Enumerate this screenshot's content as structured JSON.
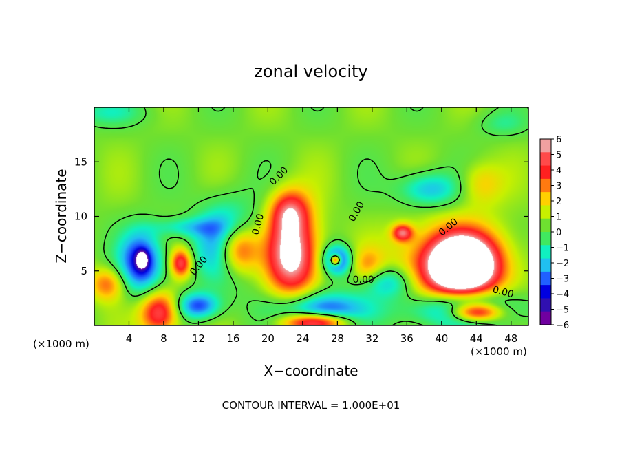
{
  "chart_data": {
    "type": "heatmap",
    "title": "zonal velocity",
    "xlabel": "X−coordinate",
    "ylabel": "Z−coordinate",
    "x_units_left": "(×1000 m)",
    "x_units_right": "(×1000 m)",
    "xlim": [
      0,
      50
    ],
    "ylim": [
      0,
      20
    ],
    "x_ticks": [
      4,
      8,
      12,
      16,
      20,
      24,
      28,
      32,
      36,
      40,
      44,
      48
    ],
    "x_tick_labels": [
      "4",
      "8",
      "12",
      "16",
      "20",
      "24",
      "28",
      "32",
      "36",
      "40",
      "44",
      "48"
    ],
    "y_ticks": [
      5,
      10,
      15
    ],
    "y_tick_labels": [
      "5",
      "10",
      "15"
    ],
    "colorbar": {
      "min": -6,
      "max": 6,
      "ticks": [
        6,
        5,
        4,
        3,
        2,
        1,
        0,
        -1,
        -2,
        -3,
        -4,
        -5,
        -6
      ],
      "tick_labels": [
        "6",
        "5",
        "4",
        "3",
        "2",
        "1",
        "0",
        "−1",
        "−2",
        "−3",
        "−4",
        "−5",
        "−6"
      ],
      "colors_top_to_bottom": [
        "#f0a0a0",
        "#ff4a4a",
        "#ff2020",
        "#ff7a10",
        "#ffd000",
        "#c8f000",
        "#6ee030",
        "#40e860",
        "#10f0c0",
        "#20c0f0",
        "#2060ff",
        "#0000e0",
        "#3010b0",
        "#7000a0"
      ]
    },
    "contour_level_label": "0.00",
    "contour_labels": [
      {
        "text": "0.00",
        "x": 21.5,
        "z": 13.5,
        "angle": -45
      },
      {
        "text": "0.00",
        "x": 19.2,
        "z": 9.2,
        "angle": -75
      },
      {
        "text": "0.00",
        "x": 12.3,
        "z": 5.3,
        "angle": -50
      },
      {
        "text": "0.00",
        "x": 30.5,
        "z": 10.3,
        "angle": -60
      },
      {
        "text": "0.00",
        "x": 31.0,
        "z": 3.9,
        "angle": 0
      },
      {
        "text": "0.00",
        "x": 41.0,
        "z": 8.8,
        "angle": -40
      },
      {
        "text": "0.00",
        "x": 47.0,
        "z": 2.8,
        "angle": 15
      }
    ],
    "field_features": [
      {
        "kind": "background",
        "value": 0.5
      },
      {
        "kind": "blob",
        "x": 22.8,
        "z": 6.5,
        "rx": 3.0,
        "ry": 4.0,
        "value": 6.5
      },
      {
        "kind": "blob",
        "x": 22.5,
        "z": 10.5,
        "rx": 2.2,
        "ry": 2.0,
        "value": 3.5
      },
      {
        "kind": "blob",
        "x": 16.5,
        "z": 7.0,
        "rx": 2.4,
        "ry": 2.4,
        "value": 6.8
      },
      {
        "kind": "blob",
        "x": 15.5,
        "z": 7.5,
        "rx": 3.5,
        "ry": 3.5,
        "value": -5.0
      },
      {
        "kind": "blob",
        "x": 5.5,
        "z": 5.8,
        "rx": 2.5,
        "ry": 2.8,
        "value": -5.0
      },
      {
        "kind": "blob",
        "x": 5.5,
        "z": 6.0,
        "rx": 0.6,
        "ry": 0.7,
        "value": -6.5
      },
      {
        "kind": "blob",
        "x": 10.0,
        "z": 5.7,
        "rx": 1.2,
        "ry": 1.3,
        "value": 4.5
      },
      {
        "kind": "blob",
        "x": 1.5,
        "z": 3.8,
        "rx": 2.0,
        "ry": 1.5,
        "value": 3.0
      },
      {
        "kind": "blob",
        "x": 7.5,
        "z": 1.2,
        "rx": 2.2,
        "ry": 2.0,
        "value": 5.0
      },
      {
        "kind": "blob",
        "x": 12.0,
        "z": 1.8,
        "rx": 2.5,
        "ry": 1.2,
        "value": -4.0
      },
      {
        "kind": "blob",
        "x": 28.0,
        "z": 6.0,
        "rx": 1.6,
        "ry": 1.3,
        "value": -5.0
      },
      {
        "kind": "blob",
        "x": 27.8,
        "z": 6.0,
        "rx": 0.6,
        "ry": 0.5,
        "value": 7.0
      },
      {
        "kind": "blob",
        "x": 26.0,
        "z": 1.2,
        "rx": 5.0,
        "ry": 1.8,
        "value": -5.0
      },
      {
        "kind": "blob",
        "x": 25.5,
        "z": 0.3,
        "rx": 4.0,
        "ry": 0.9,
        "value": 7.0
      },
      {
        "kind": "blob",
        "x": 41.5,
        "z": 5.5,
        "rx": 6.0,
        "ry": 3.5,
        "value": 5.5
      },
      {
        "kind": "blob",
        "x": 42.5,
        "z": 5.5,
        "rx": 3.5,
        "ry": 2.5,
        "value": 7.0
      },
      {
        "kind": "blob",
        "x": 42.5,
        "z": 1.5,
        "rx": 6.5,
        "ry": 1.7,
        "value": -5.0
      },
      {
        "kind": "blob",
        "x": 44.0,
        "z": 1.2,
        "rx": 3.0,
        "ry": 0.9,
        "value": 7.0
      },
      {
        "kind": "blob",
        "x": 35.5,
        "z": 8.5,
        "rx": 1.2,
        "ry": 0.8,
        "value": 4.5
      },
      {
        "kind": "blob",
        "x": 38.5,
        "z": 12.5,
        "rx": 3.5,
        "ry": 1.6,
        "value": -3.0
      },
      {
        "kind": "blob",
        "x": 44.5,
        "z": 13.0,
        "rx": 2.5,
        "ry": 2.0,
        "value": 2.0
      },
      {
        "kind": "blob",
        "x": 10.5,
        "z": 9.0,
        "rx": 4.0,
        "ry": 0.9,
        "value": -2.0
      },
      {
        "kind": "blob",
        "x": 1.0,
        "z": 19.5,
        "rx": 5.0,
        "ry": 1.2,
        "value": -1.5
      },
      {
        "kind": "blob",
        "x": 47.0,
        "z": 18.5,
        "rx": 3.0,
        "ry": 1.2,
        "value": -1.2
      },
      {
        "kind": "blob",
        "x": 34.0,
        "z": 4.0,
        "rx": 3.0,
        "ry": 1.5,
        "value": -3.0
      },
      {
        "kind": "blob",
        "x": 31.5,
        "z": 5.5,
        "rx": 1.8,
        "ry": 1.5,
        "value": 2.0
      }
    ]
  },
  "footer": {
    "contour_interval": "CONTOUR INTERVAL = 1.000E+01"
  }
}
